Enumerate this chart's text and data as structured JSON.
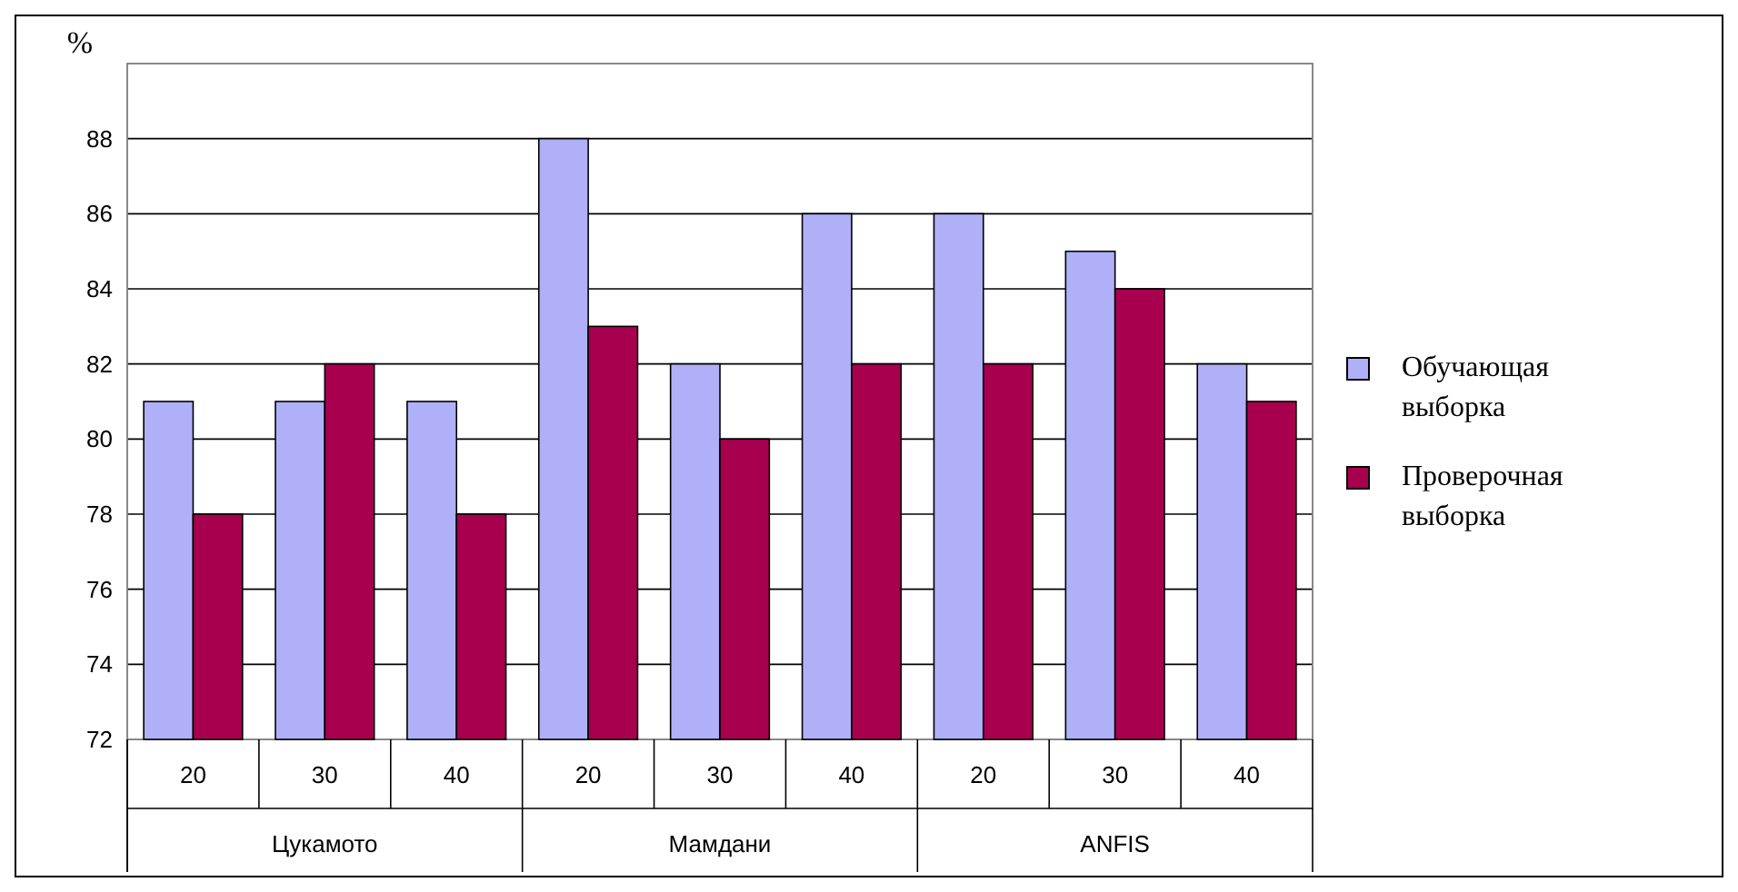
{
  "chart_data": {
    "type": "bar",
    "ylabel": "%",
    "categories": [
      "20",
      "30",
      "40",
      "20",
      "30",
      "40",
      "20",
      "30",
      "40"
    ],
    "series": [
      {
        "name": "Обучающая выборка",
        "color": "#b0b0f8",
        "values": [
          81,
          81,
          81,
          88,
          82,
          86,
          86,
          85,
          82
        ]
      },
      {
        "name": "Проверочная выборка",
        "color": "#a8004f",
        "values": [
          78,
          82,
          78,
          83,
          80,
          82,
          82,
          84,
          81
        ]
      }
    ],
    "annotations": [
      "Цукамото",
      "Мамдани",
      "ANFIS"
    ],
    "ylim": [
      72,
      90
    ],
    "yticks": [
      72,
      74,
      76,
      78,
      80,
      82,
      84,
      86,
      88
    ],
    "grid": "y",
    "legend": "right"
  }
}
